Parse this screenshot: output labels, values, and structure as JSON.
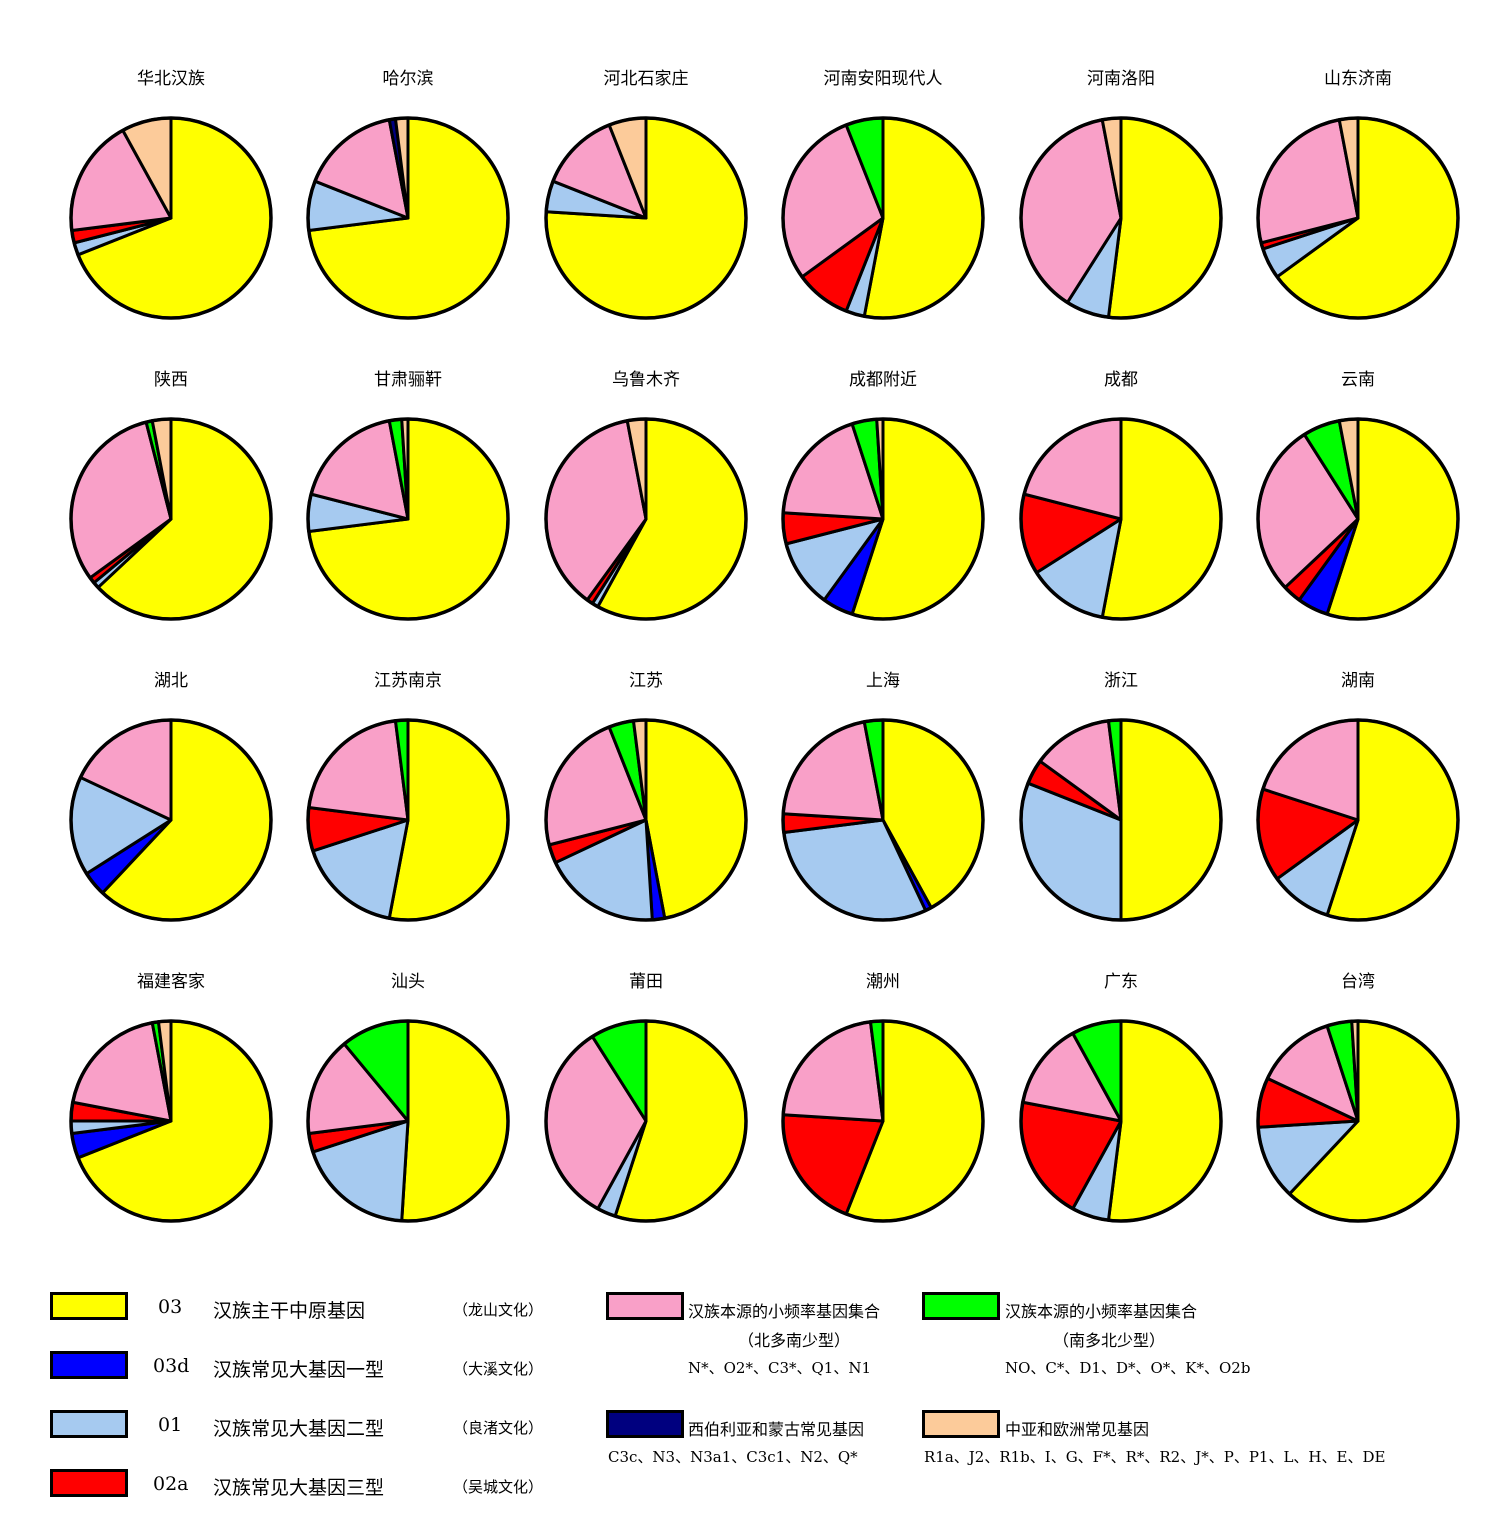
{
  "chart_data": {
    "type": "pie",
    "colors": {
      "O3": "#FFFF00",
      "O3d": "#0000FF",
      "O1": "#A6CAF0",
      "O2a": "#FF0000",
      "hanN": "#F9A0C8",
      "hanS": "#00FF00",
      "sib": "#00007F",
      "euro": "#FCCB9A"
    },
    "pies": [
      {
        "title": "华北汉族",
        "slices": [
          {
            "k": "O3",
            "v": 69
          },
          {
            "k": "O1",
            "v": 2
          },
          {
            "k": "O2a",
            "v": 2
          },
          {
            "k": "hanN",
            "v": 19
          },
          {
            "k": "euro",
            "v": 8
          }
        ]
      },
      {
        "title": "哈尔滨",
        "slices": [
          {
            "k": "O3",
            "v": 73
          },
          {
            "k": "O1",
            "v": 8
          },
          {
            "k": "hanN",
            "v": 16
          },
          {
            "k": "sib",
            "v": 1
          },
          {
            "k": "euro",
            "v": 2
          }
        ]
      },
      {
        "title": "河北石家庄",
        "slices": [
          {
            "k": "O3",
            "v": 76
          },
          {
            "k": "O1",
            "v": 5
          },
          {
            "k": "hanN",
            "v": 13
          },
          {
            "k": "euro",
            "v": 6
          }
        ]
      },
      {
        "title": "河南安阳现代人",
        "slices": [
          {
            "k": "O3",
            "v": 53
          },
          {
            "k": "O1",
            "v": 3
          },
          {
            "k": "O2a",
            "v": 9
          },
          {
            "k": "hanN",
            "v": 29
          },
          {
            "k": "hanS",
            "v": 6
          }
        ]
      },
      {
        "title": "河南洛阳",
        "slices": [
          {
            "k": "O3",
            "v": 52
          },
          {
            "k": "O1",
            "v": 7
          },
          {
            "k": "hanN",
            "v": 38
          },
          {
            "k": "euro",
            "v": 3
          }
        ]
      },
      {
        "title": "山东济南",
        "slices": [
          {
            "k": "O3",
            "v": 65
          },
          {
            "k": "O1",
            "v": 5
          },
          {
            "k": "O2a",
            "v": 1
          },
          {
            "k": "hanN",
            "v": 26
          },
          {
            "k": "euro",
            "v": 3
          }
        ]
      },
      {
        "title": "陕西",
        "slices": [
          {
            "k": "O3",
            "v": 63
          },
          {
            "k": "O1",
            "v": 1
          },
          {
            "k": "O2a",
            "v": 1
          },
          {
            "k": "hanN",
            "v": 31
          },
          {
            "k": "hanS",
            "v": 1
          },
          {
            "k": "euro",
            "v": 3
          }
        ]
      },
      {
        "title": "甘肃骊靬",
        "slices": [
          {
            "k": "O3",
            "v": 73
          },
          {
            "k": "O1",
            "v": 6
          },
          {
            "k": "hanN",
            "v": 18
          },
          {
            "k": "hanS",
            "v": 2
          },
          {
            "k": "euro",
            "v": 1
          }
        ]
      },
      {
        "title": "乌鲁木齐",
        "slices": [
          {
            "k": "O3",
            "v": 58
          },
          {
            "k": "O1",
            "v": 1
          },
          {
            "k": "O2a",
            "v": 1
          },
          {
            "k": "hanN",
            "v": 37
          },
          {
            "k": "euro",
            "v": 3
          }
        ]
      },
      {
        "title": "成都附近",
        "slices": [
          {
            "k": "O3",
            "v": 55
          },
          {
            "k": "O3d",
            "v": 5
          },
          {
            "k": "O1",
            "v": 11
          },
          {
            "k": "O2a",
            "v": 5
          },
          {
            "k": "hanN",
            "v": 19
          },
          {
            "k": "hanS",
            "v": 4
          },
          {
            "k": "euro",
            "v": 1
          }
        ]
      },
      {
        "title": "成都",
        "slices": [
          {
            "k": "O3",
            "v": 53
          },
          {
            "k": "O1",
            "v": 13
          },
          {
            "k": "O2a",
            "v": 13
          },
          {
            "k": "hanN",
            "v": 21
          }
        ]
      },
      {
        "title": "云南",
        "slices": [
          {
            "k": "O3",
            "v": 55
          },
          {
            "k": "O3d",
            "v": 5
          },
          {
            "k": "O2a",
            "v": 3
          },
          {
            "k": "hanN",
            "v": 28
          },
          {
            "k": "hanS",
            "v": 6
          },
          {
            "k": "euro",
            "v": 3
          }
        ]
      },
      {
        "title": "湖北",
        "slices": [
          {
            "k": "O3",
            "v": 62
          },
          {
            "k": "O3d",
            "v": 4
          },
          {
            "k": "O1",
            "v": 16
          },
          {
            "k": "hanN",
            "v": 18
          }
        ]
      },
      {
        "title": "江苏南京",
        "slices": [
          {
            "k": "O3",
            "v": 53
          },
          {
            "k": "O1",
            "v": 17
          },
          {
            "k": "O2a",
            "v": 7
          },
          {
            "k": "hanN",
            "v": 21
          },
          {
            "k": "hanS",
            "v": 2
          }
        ]
      },
      {
        "title": "江苏",
        "slices": [
          {
            "k": "O3",
            "v": 47
          },
          {
            "k": "O3d",
            "v": 2
          },
          {
            "k": "O1",
            "v": 19
          },
          {
            "k": "O2a",
            "v": 3
          },
          {
            "k": "hanN",
            "v": 23
          },
          {
            "k": "hanS",
            "v": 4
          },
          {
            "k": "euro",
            "v": 2
          }
        ]
      },
      {
        "title": "上海",
        "slices": [
          {
            "k": "O3",
            "v": 42
          },
          {
            "k": "O3d",
            "v": 1
          },
          {
            "k": "O1",
            "v": 30
          },
          {
            "k": "O2a",
            "v": 3
          },
          {
            "k": "hanN",
            "v": 21
          },
          {
            "k": "hanS",
            "v": 3
          }
        ]
      },
      {
        "title": "浙江",
        "slices": [
          {
            "k": "O3",
            "v": 50
          },
          {
            "k": "O1",
            "v": 31
          },
          {
            "k": "O2a",
            "v": 4
          },
          {
            "k": "hanN",
            "v": 13
          },
          {
            "k": "hanS",
            "v": 2
          }
        ]
      },
      {
        "title": "湖南",
        "slices": [
          {
            "k": "O3",
            "v": 55
          },
          {
            "k": "O1",
            "v": 10
          },
          {
            "k": "O2a",
            "v": 15
          },
          {
            "k": "hanN",
            "v": 20
          }
        ]
      },
      {
        "title": "福建客家",
        "slices": [
          {
            "k": "O3",
            "v": 69
          },
          {
            "k": "O3d",
            "v": 4
          },
          {
            "k": "O1",
            "v": 2
          },
          {
            "k": "O2a",
            "v": 3
          },
          {
            "k": "hanN",
            "v": 19
          },
          {
            "k": "hanS",
            "v": 1
          },
          {
            "k": "euro",
            "v": 2
          }
        ]
      },
      {
        "title": "汕头",
        "slices": [
          {
            "k": "O3",
            "v": 51
          },
          {
            "k": "O1",
            "v": 19
          },
          {
            "k": "O2a",
            "v": 3
          },
          {
            "k": "hanN",
            "v": 16
          },
          {
            "k": "hanS",
            "v": 11
          }
        ]
      },
      {
        "title": "莆田",
        "slices": [
          {
            "k": "O3",
            "v": 55
          },
          {
            "k": "O1",
            "v": 3
          },
          {
            "k": "hanN",
            "v": 33
          },
          {
            "k": "hanS",
            "v": 9
          }
        ]
      },
      {
        "title": "潮州",
        "slices": [
          {
            "k": "O3",
            "v": 56
          },
          {
            "k": "O2a",
            "v": 20
          },
          {
            "k": "hanN",
            "v": 22
          },
          {
            "k": "hanS",
            "v": 2
          }
        ]
      },
      {
        "title": "广东",
        "slices": [
          {
            "k": "O3",
            "v": 52
          },
          {
            "k": "O1",
            "v": 6
          },
          {
            "k": "O2a",
            "v": 20
          },
          {
            "k": "hanN",
            "v": 14
          },
          {
            "k": "hanS",
            "v": 8
          }
        ]
      },
      {
        "title": "台湾",
        "slices": [
          {
            "k": "O3",
            "v": 62
          },
          {
            "k": "O1",
            "v": 12
          },
          {
            "k": "O2a",
            "v": 8
          },
          {
            "k": "hanN",
            "v": 13
          },
          {
            "k": "hanS",
            "v": 4
          },
          {
            "k": "euro",
            "v": 1
          }
        ]
      }
    ]
  },
  "legend": {
    "O3": {
      "code": "03",
      "name": "汉族主干中原基因",
      "culture": "（龙山文化）"
    },
    "O3d": {
      "code": "03d",
      "name": "汉族常见大基因一型",
      "culture": "（大溪文化）"
    },
    "O1": {
      "code": "01",
      "name": "汉族常见大基因二型",
      "culture": "（良渚文化）"
    },
    "O2a": {
      "code": "02a",
      "name": "汉族常见大基因三型",
      "culture": "（吴城文化）"
    },
    "hanN": {
      "name": "汉族本源的小频率基因集合",
      "sub": "（北多南少型）",
      "list": "N*、O2*、C3*、Q1、N1"
    },
    "hanS": {
      "name": "汉族本源的小频率基因集合",
      "sub": "（南多北少型）",
      "list": "NO、C*、D1、D*、O*、K*、O2b"
    },
    "sib": {
      "name": "西伯利亚和蒙古常见基因",
      "list": "C3c、N3、N3a1、C3c1、N2、Q*"
    },
    "euro": {
      "name": "中亚和欧洲常见基因",
      "list": "R1a、J2、R1b、I、G、F*、R*、R2、J*、P、P1、L、H、E、DE"
    }
  }
}
